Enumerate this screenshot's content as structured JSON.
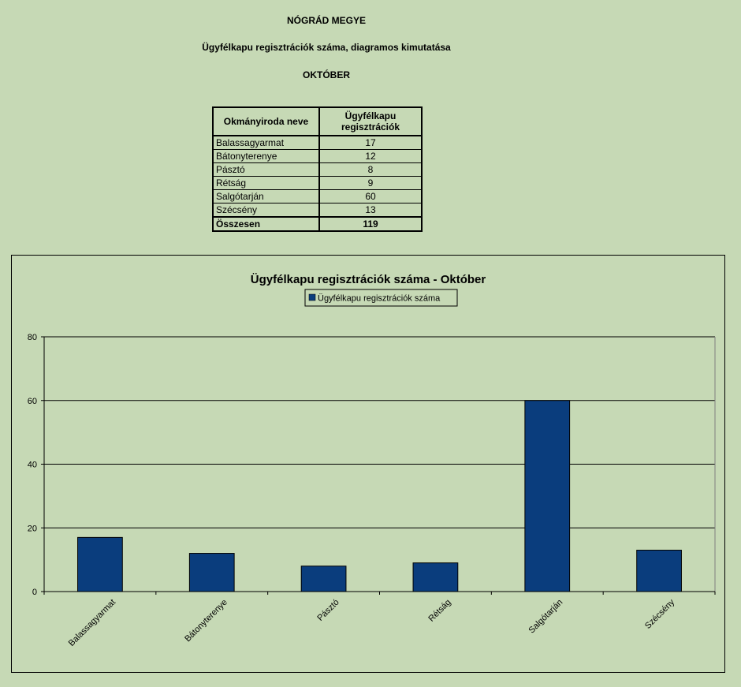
{
  "header": {
    "county": "NÓGRÁD MEGYE",
    "subtitle": "Ügyfélkapu regisztrációk száma, diagramos kimutatása",
    "month": "OKTÓBER"
  },
  "table": {
    "col1": "Okmányiroda neve",
    "col2": "Ügyfélkapu regisztrációk",
    "rows": [
      {
        "name": "Balassagyarmat",
        "value": "17"
      },
      {
        "name": "Bátonyterenye",
        "value": "12"
      },
      {
        "name": "Pásztó",
        "value": "8"
      },
      {
        "name": "Rétság",
        "value": "9"
      },
      {
        "name": "Salgótarján",
        "value": "60"
      },
      {
        "name": "Szécsény",
        "value": "13"
      }
    ],
    "total_label": "Összesen",
    "total_value": "119"
  },
  "chart_data": {
    "type": "bar",
    "title": "Ügyfélkapu regisztrációk száma - Október",
    "categories": [
      "Balassagyarmat",
      "Bátonyterenye",
      "Pásztó",
      "Rétság",
      "Salgótarján",
      "Szécsény"
    ],
    "series": [
      {
        "name": "Ügyfélkapu regisztrációk száma",
        "values": [
          17,
          12,
          8,
          9,
          60,
          13
        ],
        "color": "#0a3d7d"
      }
    ],
    "ylim": [
      0,
      80
    ],
    "yticks": [
      0,
      20,
      40,
      60,
      80
    ],
    "grid": true,
    "legend": "top-center"
  }
}
